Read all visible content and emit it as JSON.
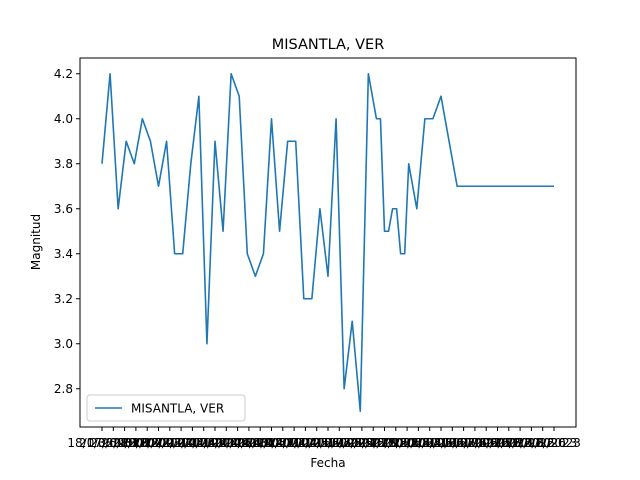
{
  "chart_data": {
    "type": "line",
    "title": "MISANTLA, VER",
    "xlabel": "Fecha",
    "ylabel": "Magnitud",
    "ylim": [
      2.63,
      4.27
    ],
    "yticks": [
      2.8,
      3.0,
      3.2,
      3.4,
      3.6,
      3.8,
      4.0,
      4.2
    ],
    "ytick_labels": [
      "2.8",
      "3.0",
      "3.2",
      "3.4",
      "3.6",
      "3.8",
      "4.0",
      "4.2"
    ],
    "xtick_labels": [
      "18/07/2023",
      "21/08/2023",
      "23/09/2023",
      "26/10/2023",
      "28/11/2023",
      "31/12/2023",
      "03/02/2024",
      "07/03/2024",
      "09/04/2024",
      "12/05/2024",
      "14/06/2024",
      "17/07/2024",
      "19/08/2024",
      "21/09/2024",
      "24/10/2024",
      "26/11/2024",
      "29/12/2024",
      "31/01/2025",
      "05/03/2025",
      "07/04/2025",
      "10/05/2025",
      "12/06/2025",
      "15/07/2025",
      "17/08/2025",
      "19/09/2025",
      "22/10/2025",
      "24/11/2025",
      "27/12/2025",
      "29/01/2026",
      "03/03/2026",
      "05/04/2026",
      "08/05/2026",
      "10/06/2026",
      "13/07/2026",
      "15/08/2026",
      "17/09/2026",
      "20/10/2026",
      "22/11/2026",
      "25/12/2026",
      "27/01/2023",
      "1/1/2023"
    ],
    "grid": false,
    "legend": "lower-left",
    "series": [
      {
        "name": "MISANTLA, VER",
        "color": "#1f77b4",
        "x": [
          0,
          1,
          2,
          3,
          4,
          5,
          6,
          7,
          8,
          9,
          10,
          11,
          12,
          13,
          14,
          15,
          16,
          17,
          18,
          19,
          20,
          21,
          22,
          23,
          24,
          25,
          26,
          27,
          28,
          29,
          30,
          31,
          32,
          33,
          34,
          34.5,
          35,
          35.5,
          36,
          36.5,
          37,
          37.5,
          38,
          39,
          40,
          40.1,
          41,
          42,
          43,
          44,
          45,
          46,
          47,
          48,
          49,
          50,
          51,
          52,
          53,
          54,
          55,
          56
        ],
        "values": [
          3.8,
          4.2,
          3.6,
          3.9,
          3.8,
          4.0,
          3.9,
          3.7,
          3.9,
          3.4,
          3.4,
          3.8,
          4.1,
          3.0,
          3.9,
          3.5,
          4.2,
          4.1,
          3.4,
          3.3,
          3.4,
          4.0,
          3.5,
          3.9,
          3.9,
          3.2,
          3.2,
          3.6,
          3.3,
          4.0,
          2.8,
          3.1,
          2.7,
          4.2,
          4.0,
          4.0,
          3.5,
          3.5,
          3.6,
          3.6,
          3.4,
          3.4,
          3.8,
          3.6,
          4.0,
          4.0,
          4.0,
          4.1,
          3.9,
          3.7,
          3.7,
          3.7,
          3.7,
          3.7,
          3.7,
          3.7,
          3.7,
          3.7,
          3.7,
          3.7,
          3.7,
          3.7
        ]
      }
    ]
  }
}
